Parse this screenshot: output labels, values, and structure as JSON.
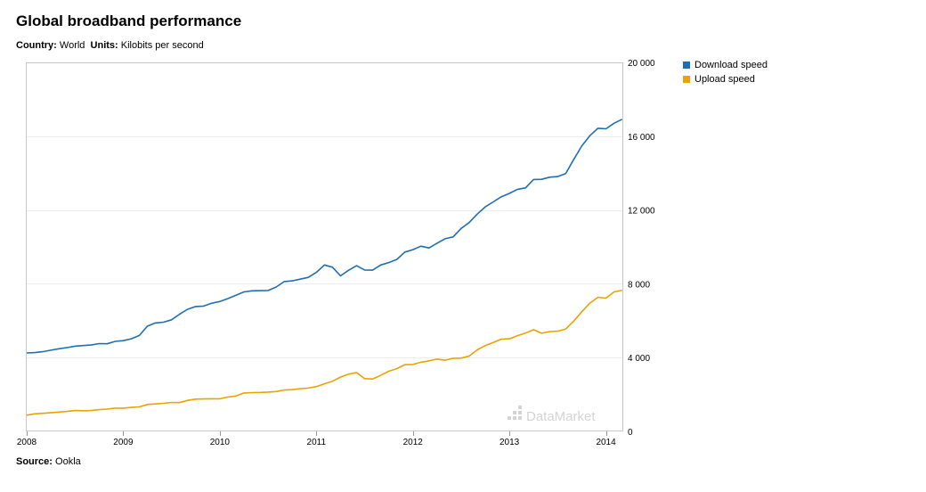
{
  "header": {
    "title": "Global broadband performance",
    "country_label": "Country:",
    "country_value": "World",
    "units_label": "Units:",
    "units_value": "Kilobits per second"
  },
  "footer": {
    "source_label": "Source:",
    "source_value": "Ookla"
  },
  "watermark": "DataMarket",
  "chart_data": {
    "type": "line",
    "title": "Global broadband performance",
    "xlabel": "",
    "ylabel": "",
    "x_ticks": [
      "2008",
      "2009",
      "2010",
      "2011",
      "2012",
      "2013",
      "2014"
    ],
    "y_ticks": [
      "0",
      "4 000",
      "8 000",
      "12 000",
      "16 000",
      "20 000"
    ],
    "xlim": [
      2008.0,
      2014.17
    ],
    "ylim": [
      0,
      20000
    ],
    "grid": true,
    "y_axis_side": "right",
    "legend_position": "right",
    "series": [
      {
        "name": "Download speed",
        "color": "#1f6fb2",
        "x": [
          2008.0,
          2008.083,
          2008.167,
          2008.25,
          2008.333,
          2008.417,
          2008.5,
          2008.583,
          2008.667,
          2008.75,
          2008.833,
          2008.917,
          2009.0,
          2009.083,
          2009.167,
          2009.25,
          2009.333,
          2009.417,
          2009.5,
          2009.583,
          2009.667,
          2009.75,
          2009.833,
          2009.917,
          2010.0,
          2010.083,
          2010.167,
          2010.25,
          2010.333,
          2010.417,
          2010.5,
          2010.583,
          2010.667,
          2010.75,
          2010.833,
          2010.917,
          2011.0,
          2011.083,
          2011.167,
          2011.25,
          2011.333,
          2011.417,
          2011.5,
          2011.583,
          2011.667,
          2011.75,
          2011.833,
          2011.917,
          2012.0,
          2012.083,
          2012.167,
          2012.25,
          2012.333,
          2012.417,
          2012.5,
          2012.583,
          2012.667,
          2012.75,
          2012.833,
          2012.917,
          2013.0,
          2013.083,
          2013.167,
          2013.25,
          2013.333,
          2013.417,
          2013.5,
          2013.583,
          2013.667,
          2013.75,
          2013.833,
          2013.917,
          2014.0,
          2014.083,
          2014.167
        ],
        "values": [
          4250,
          4270,
          4320,
          4400,
          4480,
          4540,
          4620,
          4650,
          4680,
          4760,
          4750,
          4880,
          4920,
          5020,
          5200,
          5700,
          5880,
          5920,
          6050,
          6350,
          6620,
          6770,
          6790,
          6950,
          7040,
          7200,
          7380,
          7560,
          7620,
          7630,
          7640,
          7820,
          8120,
          8160,
          8250,
          8350,
          8620,
          9020,
          8900,
          8430,
          8730,
          8980,
          8750,
          8740,
          9020,
          9150,
          9320,
          9720,
          9850,
          10040,
          9940,
          10200,
          10440,
          10540,
          11000,
          11320,
          11780,
          12170,
          12440,
          12720,
          12900,
          13120,
          13200,
          13650,
          13660,
          13780,
          13810,
          13980,
          14750,
          15480,
          16030,
          16430,
          16400,
          16700,
          16920
        ]
      },
      {
        "name": "Upload speed",
        "color": "#e8a400",
        "x": [
          2008.0,
          2008.083,
          2008.167,
          2008.25,
          2008.333,
          2008.417,
          2008.5,
          2008.583,
          2008.667,
          2008.75,
          2008.833,
          2008.917,
          2009.0,
          2009.083,
          2009.167,
          2009.25,
          2009.333,
          2009.417,
          2009.5,
          2009.583,
          2009.667,
          2009.75,
          2009.833,
          2009.917,
          2010.0,
          2010.083,
          2010.167,
          2010.25,
          2010.333,
          2010.417,
          2010.5,
          2010.583,
          2010.667,
          2010.75,
          2010.833,
          2010.917,
          2011.0,
          2011.083,
          2011.167,
          2011.25,
          2011.333,
          2011.417,
          2011.5,
          2011.583,
          2011.667,
          2011.75,
          2011.833,
          2011.917,
          2012.0,
          2012.083,
          2012.167,
          2012.25,
          2012.333,
          2012.417,
          2012.5,
          2012.583,
          2012.667,
          2012.75,
          2012.833,
          2012.917,
          2013.0,
          2013.083,
          2013.167,
          2013.25,
          2013.333,
          2013.417,
          2013.5,
          2013.583,
          2013.667,
          2013.75,
          2013.833,
          2013.917,
          2014.0,
          2014.083,
          2014.167
        ],
        "values": [
          880,
          950,
          980,
          1010,
          1050,
          1080,
          1130,
          1120,
          1130,
          1180,
          1210,
          1260,
          1260,
          1300,
          1330,
          1460,
          1490,
          1520,
          1570,
          1560,
          1680,
          1750,
          1760,
          1770,
          1770,
          1860,
          1920,
          2080,
          2100,
          2110,
          2130,
          2160,
          2240,
          2260,
          2320,
          2350,
          2430,
          2580,
          2720,
          2940,
          3100,
          3190,
          2860,
          2840,
          3040,
          3260,
          3400,
          3620,
          3630,
          3750,
          3820,
          3920,
          3860,
          3960,
          3970,
          4080,
          4420,
          4650,
          4820,
          5000,
          5020,
          5190,
          5330,
          5510,
          5320,
          5410,
          5430,
          5550,
          5980,
          6490,
          6950,
          7270,
          7220,
          7560,
          7650
        ]
      }
    ]
  }
}
